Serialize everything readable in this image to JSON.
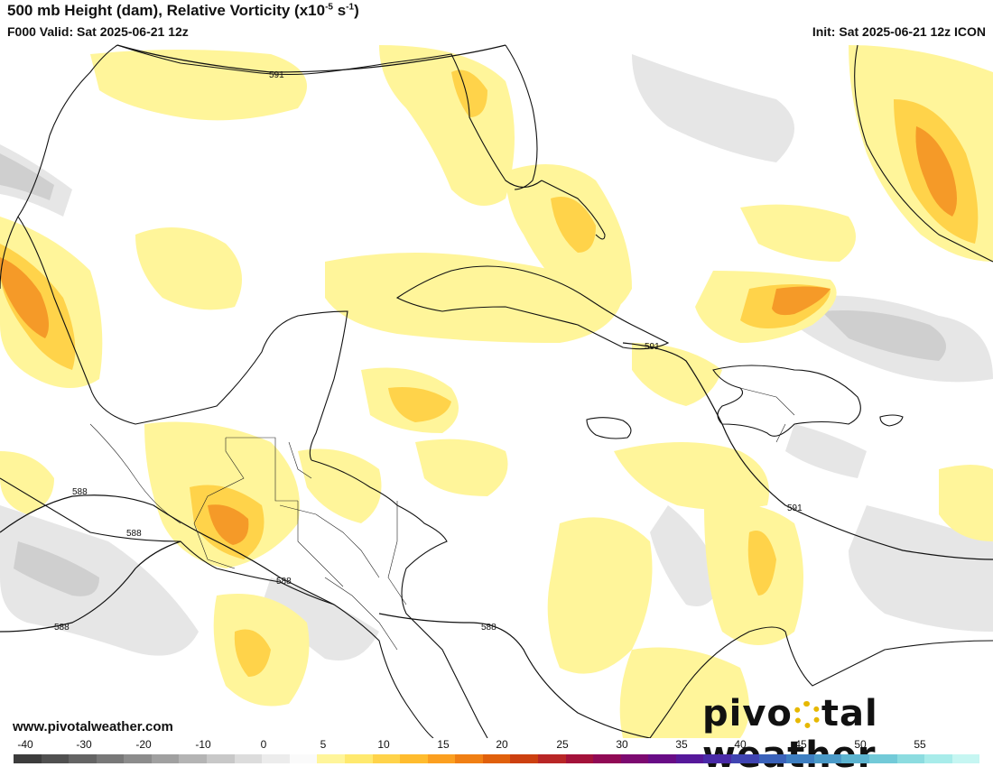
{
  "header": {
    "title_main": "500 mb Height (dam), Relative Vorticity (x10",
    "title_exp1": "-5",
    "title_mid": " s",
    "title_exp2": "-1",
    "title_end": ")",
    "valid": "F000 Valid: Sat 2025-06-21 12z",
    "init": "Init: Sat 2025-06-21 12z ICON"
  },
  "map": {
    "contour_labels": [
      "591",
      "591",
      "591",
      "588",
      "588",
      "588",
      "588",
      "588"
    ]
  },
  "footer": {
    "url": "www.pivotalweather.com",
    "logo_part1": "pivo",
    "logo_part2": "tal weather"
  },
  "colorbar": {
    "tick_labels": [
      "-40",
      "-30",
      "-20",
      "-10",
      "0",
      "5",
      "10",
      "15",
      "20",
      "25",
      "30",
      "35",
      "40",
      "45",
      "50",
      "55"
    ],
    "colors": [
      "#3c3c3c",
      "#505050",
      "#646464",
      "#787878",
      "#8c8c8c",
      "#a0a0a0",
      "#b4b4b4",
      "#c8c8c8",
      "#dcdcdc",
      "#ececec",
      "#fafafa",
      "#fff59a",
      "#ffe96e",
      "#ffd34a",
      "#ffbc2e",
      "#fb9f20",
      "#f07f14",
      "#e0600c",
      "#cc4010",
      "#b82626",
      "#a3123a",
      "#900a55",
      "#7c0a70",
      "#680c86",
      "#56189a",
      "#4a2aa8",
      "#4044b2",
      "#3a62ba",
      "#3e7fc2",
      "#4a9ac8",
      "#5cb4d0",
      "#72cad8",
      "#8cdce0",
      "#a8ecea",
      "#c6f6f2"
    ]
  }
}
